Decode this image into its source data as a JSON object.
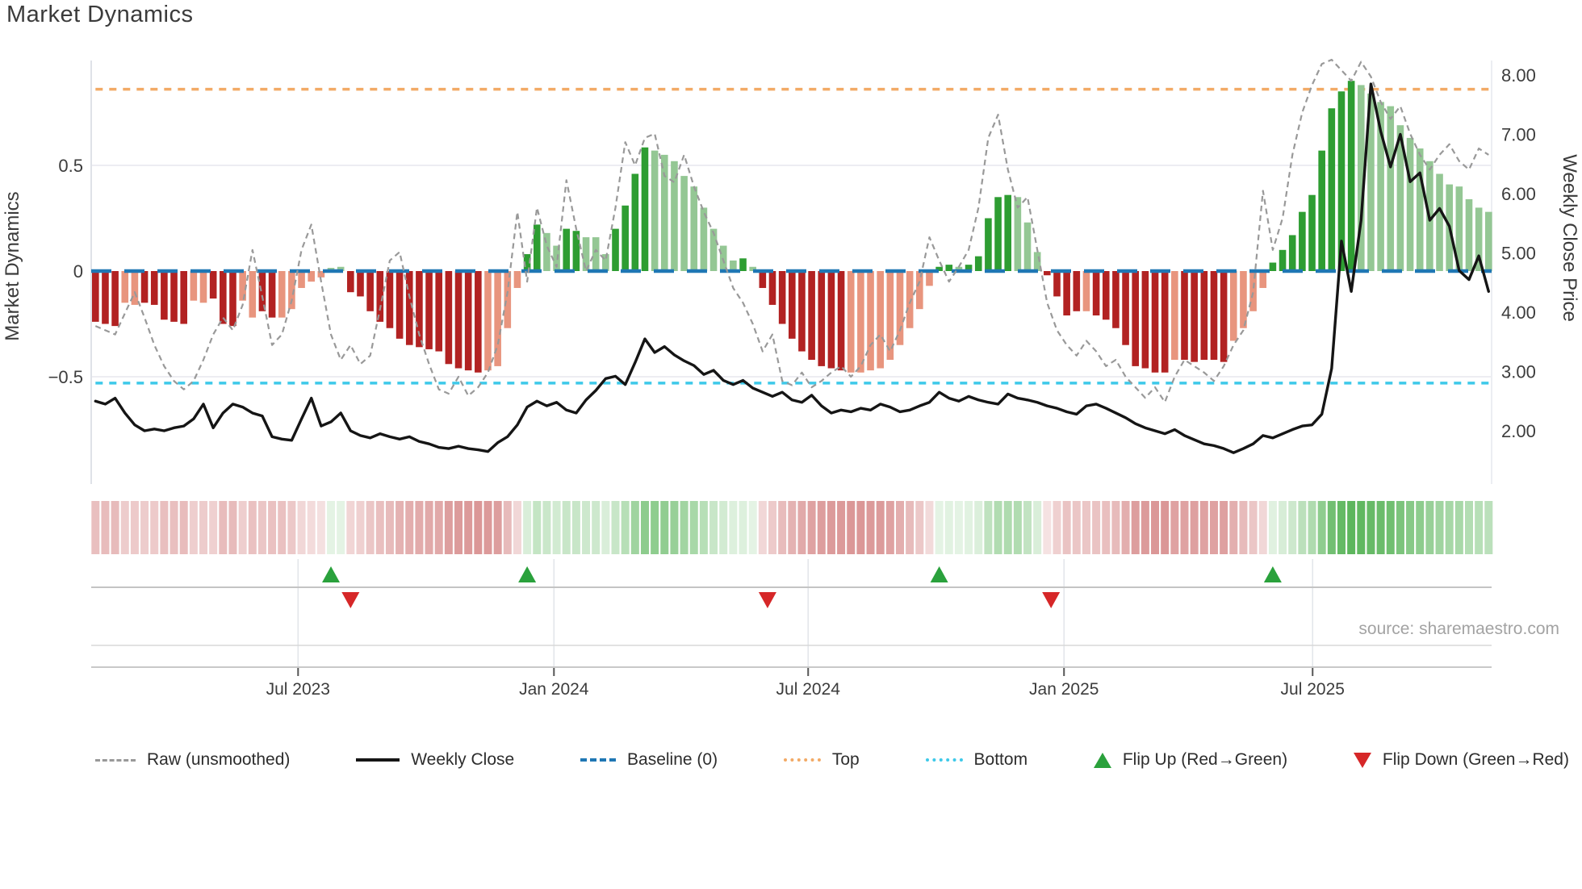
{
  "title": "Market Dynamics",
  "source_note": "source: sharemaestro.com",
  "left_axis_label": "Market Dynamics",
  "right_axis_label": "Weekly Close Price",
  "legend": {
    "items": [
      {
        "id": "raw",
        "label": "Raw (unsmoothed)",
        "marker": "dash",
        "color": "#999999"
      },
      {
        "id": "weekly-close",
        "label": "Weekly Close",
        "marker": "solid",
        "color": "#151515"
      },
      {
        "id": "baseline",
        "label": "Baseline (0)",
        "marker": "longdash",
        "color": "#1f77b4"
      },
      {
        "id": "top",
        "label": "Top",
        "marker": "dot",
        "color": "#f2aa66"
      },
      {
        "id": "bottom",
        "label": "Bottom",
        "marker": "dot",
        "color": "#3ec9e9"
      },
      {
        "id": "flip-up",
        "label": "Flip Up (Red→Green)",
        "marker": "tri-up",
        "color": "#2aa13c"
      },
      {
        "id": "flip-down",
        "label": "Flip Down (Green→Red)",
        "marker": "tri-down",
        "color": "#d62728"
      }
    ]
  },
  "chart_data": {
    "type": "bar",
    "subtype": "weekly oscillator bars + dual-axis lines + heat strip + flip markers",
    "title": "Market Dynamics",
    "xlabel": "",
    "ylabel_left": "Market Dynamics",
    "ylabel_right": "Weekly Close Price",
    "ylim_left": [
      -1.0,
      1.0
    ],
    "ylim_right": [
      1.1,
      8.25
    ],
    "grid": "horizontal at +0.5 and -0.5",
    "legend_position": "bottom row, spread full width",
    "left_ticks": [
      {
        "label": "0.5",
        "value": 0.5
      },
      {
        "label": "0",
        "value": 0
      },
      {
        "label": "−0.5",
        "value": -0.5
      }
    ],
    "right_ticks": [
      {
        "label": "8.00",
        "value": 8
      },
      {
        "label": "7.00",
        "value": 7
      },
      {
        "label": "6.00",
        "value": 6
      },
      {
        "label": "5.00",
        "value": 5
      },
      {
        "label": "4.00",
        "value": 4
      },
      {
        "label": "3.00",
        "value": 3
      },
      {
        "label": "2.00",
        "value": 2
      }
    ],
    "x_ticks": [
      {
        "label": "Jul 2023",
        "week": 20.65
      },
      {
        "label": "Jan 2024",
        "week": 46.73
      },
      {
        "label": "Jul 2024",
        "week": 72.64
      },
      {
        "label": "Jan 2025",
        "week": 98.72
      },
      {
        "label": "Jul 2025",
        "week": 124.06
      }
    ],
    "reference_lines": {
      "baseline": {
        "label": "Baseline (0)",
        "value": 0,
        "color": "#1f77b4"
      },
      "top": {
        "label": "Top",
        "value": 0.86,
        "color": "#f2aa66"
      },
      "bottom": {
        "label": "Bottom",
        "value": -0.53,
        "color": "#3ec9e9"
      }
    },
    "bar_colors": {
      "r": "#b22222",
      "rs": "#e8957e",
      "g": "#2e9d32",
      "gl": "#94c794"
    },
    "bars": [
      -0.24,
      -0.25,
      -0.26,
      -0.15,
      -0.16,
      -0.15,
      -0.16,
      -0.23,
      -0.24,
      -0.25,
      -0.14,
      -0.15,
      -0.13,
      -0.25,
      -0.26,
      -0.14,
      -0.22,
      -0.19,
      -0.22,
      -0.22,
      -0.18,
      -0.08,
      -0.05,
      -0.03,
      0.015,
      0.02,
      -0.1,
      -0.12,
      -0.19,
      -0.24,
      -0.27,
      -0.32,
      -0.35,
      -0.36,
      -0.37,
      -0.38,
      -0.44,
      -0.46,
      -0.47,
      -0.48,
      -0.47,
      -0.45,
      -0.27,
      -0.08,
      0.08,
      0.22,
      0.18,
      0.12,
      0.2,
      0.19,
      0.16,
      0.16,
      0.08,
      0.2,
      0.31,
      0.46,
      0.585,
      0.57,
      0.55,
      0.52,
      0.45,
      0.4,
      0.3,
      0.2,
      0.12,
      0.05,
      0.06,
      0.02,
      -0.08,
      -0.16,
      -0.25,
      -0.32,
      -0.38,
      -0.42,
      -0.45,
      -0.46,
      -0.47,
      -0.48,
      -0.48,
      -0.47,
      -0.46,
      -0.42,
      -0.35,
      -0.27,
      -0.18,
      -0.07,
      0.02,
      0.03,
      0.02,
      0.03,
      0.07,
      0.25,
      0.35,
      0.36,
      0.35,
      0.23,
      0.09,
      -0.02,
      -0.12,
      -0.21,
      -0.19,
      -0.19,
      -0.21,
      -0.23,
      -0.27,
      -0.35,
      -0.45,
      -0.46,
      -0.48,
      -0.48,
      -0.42,
      -0.42,
      -0.43,
      -0.42,
      -0.42,
      -0.43,
      -0.33,
      -0.27,
      -0.19,
      -0.08,
      0.04,
      0.1,
      0.17,
      0.28,
      0.36,
      0.57,
      0.77,
      0.85,
      0.9,
      0.88,
      0.84,
      0.8,
      0.78,
      0.69,
      0.63,
      0.58,
      0.52,
      0.46,
      0.41,
      0.4,
      0.34,
      0.3,
      0.28
    ],
    "bar_shades": [
      "r",
      "r",
      "r",
      "rs",
      "rs",
      "r",
      "r",
      "r",
      "r",
      "r",
      "rs",
      "rs",
      "r",
      "r",
      "r",
      "rs",
      "rs",
      "r",
      "r",
      "rs",
      "rs",
      "rs",
      "rs",
      "rs",
      "gl",
      "gl",
      "r",
      "r",
      "r",
      "r",
      "r",
      "r",
      "r",
      "r",
      "r",
      "r",
      "r",
      "r",
      "r",
      "r",
      "rs",
      "rs",
      "rs",
      "rs",
      "g",
      "g",
      "gl",
      "gl",
      "g",
      "g",
      "gl",
      "gl",
      "gl",
      "g",
      "g",
      "g",
      "g",
      "gl",
      "gl",
      "gl",
      "gl",
      "gl",
      "gl",
      "gl",
      "gl",
      "gl",
      "g",
      "gl",
      "r",
      "r",
      "r",
      "r",
      "r",
      "r",
      "r",
      "r",
      "r",
      "rs",
      "rs",
      "rs",
      "rs",
      "rs",
      "rs",
      "rs",
      "rs",
      "rs",
      "g",
      "g",
      "gl",
      "g",
      "g",
      "g",
      "g",
      "g",
      "gl",
      "gl",
      "gl",
      "r",
      "r",
      "r",
      "r",
      "rs",
      "r",
      "r",
      "r",
      "r",
      "r",
      "r",
      "r",
      "r",
      "rs",
      "r",
      "r",
      "r",
      "r",
      "r",
      "rs",
      "rs",
      "rs",
      "rs",
      "g",
      "g",
      "g",
      "g",
      "g",
      "g",
      "g",
      "g",
      "g",
      "gl",
      "gl",
      "gl",
      "gl",
      "gl",
      "gl",
      "gl",
      "gl",
      "gl",
      "gl",
      "gl",
      "gl",
      "gl",
      "gl"
    ],
    "raw_line": {
      "name": "Raw (unsmoothed)",
      "color": "#999999",
      "values": [
        -0.26,
        -0.28,
        -0.3,
        -0.2,
        -0.1,
        -0.22,
        -0.35,
        -0.45,
        -0.52,
        -0.56,
        -0.52,
        -0.42,
        -0.3,
        -0.22,
        -0.28,
        -0.16,
        0.1,
        -0.12,
        -0.35,
        -0.3,
        -0.14,
        0.1,
        0.22,
        -0.05,
        -0.3,
        -0.42,
        -0.35,
        -0.44,
        -0.4,
        -0.18,
        0.05,
        0.09,
        -0.12,
        -0.3,
        -0.44,
        -0.56,
        -0.58,
        -0.5,
        -0.59,
        -0.55,
        -0.48,
        -0.35,
        -0.1,
        0.28,
        -0.05,
        0.3,
        0.12,
        0.02,
        0.43,
        0.2,
        0.0,
        0.1,
        0.05,
        0.3,
        0.61,
        0.5,
        0.63,
        0.65,
        0.45,
        0.42,
        0.55,
        0.4,
        0.28,
        0.18,
        0.05,
        -0.08,
        -0.15,
        -0.25,
        -0.38,
        -0.3,
        -0.52,
        -0.54,
        -0.48,
        -0.55,
        -0.52,
        -0.48,
        -0.45,
        -0.5,
        -0.45,
        -0.35,
        -0.3,
        -0.38,
        -0.28,
        -0.15,
        -0.05,
        0.16,
        0.05,
        -0.05,
        0.02,
        0.1,
        0.3,
        0.63,
        0.74,
        0.48,
        0.3,
        0.35,
        0.1,
        -0.15,
        -0.28,
        -0.35,
        -0.4,
        -0.33,
        -0.38,
        -0.45,
        -0.42,
        -0.5,
        -0.55,
        -0.6,
        -0.55,
        -0.62,
        -0.5,
        -0.42,
        -0.45,
        -0.48,
        -0.52,
        -0.45,
        -0.35,
        -0.28,
        -0.1,
        0.38,
        0.1,
        0.25,
        0.55,
        0.75,
        0.88,
        0.98,
        1.0,
        0.95,
        0.9,
        0.99,
        0.92,
        0.8,
        0.72,
        0.78,
        0.65,
        0.55,
        0.48,
        0.55,
        0.6,
        0.52,
        0.48,
        0.58,
        0.55
      ]
    },
    "price_line": {
      "name": "Weekly Close",
      "color": "#151515",
      "values": [
        2.5,
        2.45,
        2.55,
        2.3,
        2.1,
        2.0,
        2.03,
        2.0,
        2.05,
        2.08,
        2.2,
        2.45,
        2.05,
        2.3,
        2.45,
        2.4,
        2.3,
        2.25,
        1.9,
        1.86,
        1.84,
        2.2,
        2.55,
        2.08,
        2.15,
        2.3,
        2.0,
        1.92,
        1.88,
        1.95,
        1.9,
        1.86,
        1.9,
        1.82,
        1.78,
        1.72,
        1.7,
        1.74,
        1.7,
        1.68,
        1.65,
        1.8,
        1.9,
        2.1,
        2.4,
        2.5,
        2.42,
        2.48,
        2.35,
        2.3,
        2.52,
        2.68,
        2.88,
        2.92,
        2.78,
        3.15,
        3.55,
        3.32,
        3.42,
        3.28,
        3.18,
        3.1,
        2.95,
        3.02,
        2.85,
        2.78,
        2.85,
        2.72,
        2.65,
        2.58,
        2.65,
        2.52,
        2.48,
        2.6,
        2.42,
        2.3,
        2.35,
        2.32,
        2.38,
        2.35,
        2.45,
        2.4,
        2.32,
        2.35,
        2.42,
        2.48,
        2.65,
        2.55,
        2.5,
        2.58,
        2.52,
        2.48,
        2.45,
        2.62,
        2.55,
        2.52,
        2.48,
        2.42,
        2.38,
        2.32,
        2.28,
        2.42,
        2.45,
        2.38,
        2.3,
        2.22,
        2.12,
        2.05,
        2.0,
        1.95,
        2.02,
        1.92,
        1.85,
        1.78,
        1.75,
        1.7,
        1.63,
        1.7,
        1.78,
        1.92,
        1.88,
        1.95,
        2.02,
        2.08,
        2.1,
        2.28,
        3.05,
        5.2,
        4.35,
        5.55,
        7.85,
        7.05,
        6.45,
        7.0,
        6.2,
        6.35,
        5.55,
        5.75,
        5.45,
        4.7,
        4.55,
        4.95,
        4.35
      ]
    },
    "heatmap": {
      "description": "weekly red/green intensity strip mirroring bar values",
      "pos_color_rgb": [
        44,
        160,
        44
      ],
      "neg_color_rgb": [
        178,
        34,
        34
      ]
    },
    "flips": {
      "up": {
        "label": "Flip Up (Red→Green)",
        "color": "#2aa13c",
        "weeks": [
          24,
          44,
          86,
          120
        ]
      },
      "down": {
        "label": "Flip Down (Green→Red)",
        "color": "#d62728",
        "weeks": [
          26,
          68.5,
          97.4
        ]
      }
    }
  }
}
